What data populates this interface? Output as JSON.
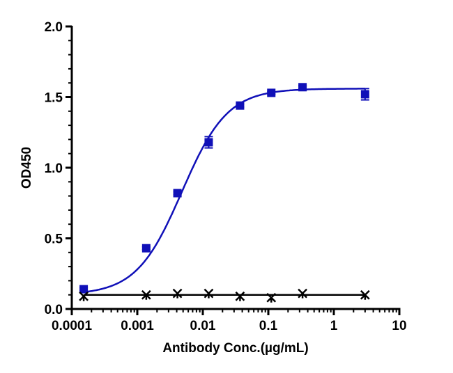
{
  "chart_data": {
    "type": "scatter",
    "title": "",
    "xlabel": "Antibody Conc.(µg/mL)",
    "ylabel": "OD450",
    "xscale": "log",
    "xlim": [
      0.0001,
      10
    ],
    "ylim": [
      0,
      2.0
    ],
    "xticks": [
      "0.0001",
      "0.001",
      "0.01",
      "0.1",
      "1",
      "10"
    ],
    "xtick_values": [
      0.0001,
      0.001,
      0.01,
      0.1,
      1,
      10
    ],
    "yticks": [
      "0.0",
      "0.5",
      "1.0",
      "1.5",
      "2.0"
    ],
    "ytick_values": [
      0,
      0.5,
      1.0,
      1.5,
      2.0
    ],
    "grid": false,
    "legend": "none",
    "series": [
      {
        "marker": "square",
        "color": "#1010B8",
        "x": [
          0.000152,
          0.00137,
          0.0041,
          0.0123,
          0.037,
          0.111,
          0.333,
          3
        ],
        "y": [
          0.14,
          0.43,
          0.82,
          1.18,
          1.44,
          1.53,
          1.57,
          1.52
        ],
        "error": [
          0.01,
          0.01,
          0.01,
          0.04,
          0.01,
          0.01,
          0.01,
          0.04
        ],
        "fit": {
          "model": "4PL",
          "bottom": 0.1,
          "top": 1.56,
          "ec50": 0.0048,
          "hill": 1.25
        }
      },
      {
        "marker": "x",
        "color": "#000000",
        "x": [
          0.000152,
          0.00137,
          0.0041,
          0.0123,
          0.037,
          0.111,
          0.333,
          3
        ],
        "y": [
          0.09,
          0.1,
          0.11,
          0.11,
          0.09,
          0.08,
          0.11,
          0.1
        ],
        "fit": {
          "model": "constant",
          "value": 0.1
        }
      }
    ]
  }
}
